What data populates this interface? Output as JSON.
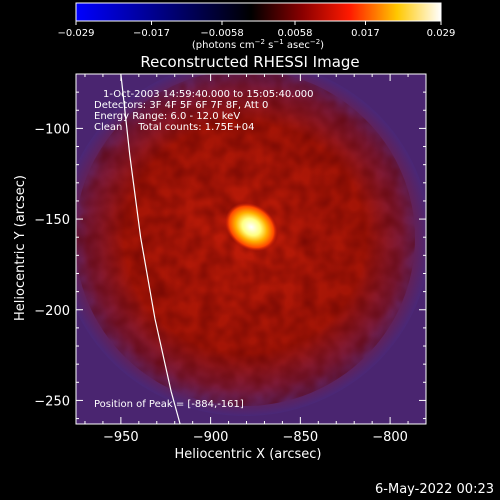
{
  "chart_data": {
    "type": "heatmap",
    "title": "Reconstructed RHESSI Image",
    "xlabel": "Heliocentric X (arcsec)",
    "ylabel": "Heliocentric Y (arcsec)",
    "xlim": [
      -975,
      -780
    ],
    "ylim": [
      -263,
      -70
    ],
    "xticks": [
      -950,
      -900,
      -850,
      -800
    ],
    "xtick_labels": [
      "−950",
      "−900",
      "−850",
      "−800"
    ],
    "yticks": [
      -100,
      -150,
      -200,
      -250
    ],
    "ytick_labels": [
      "−100",
      "−150",
      "−200",
      "−250"
    ],
    "colorbar": {
      "range": [
        -0.029,
        0.029
      ],
      "ticks": [
        -0.029,
        -0.017,
        -0.0058,
        0.0058,
        0.017,
        0.029
      ],
      "tick_labels": [
        "−0.029",
        "−0.017",
        "−0.0058",
        "0.0058",
        "0.017",
        "0.029"
      ],
      "unit_main": "(photons cm",
      "unit_exp1": "−2",
      "unit_mid": " s",
      "unit_exp2": "−1",
      "unit_end": " asec",
      "unit_exp3": "−2",
      "unit_close": ")",
      "colors": [
        "#0000ff",
        "#000000",
        "#7f0000",
        "#ff0000",
        "#ffff00",
        "#ffffff"
      ]
    },
    "annotations": {
      "time_range": "1-Oct-2003 14:59:40.000 to 15:05:40.000",
      "detectors": "Detectors: 3F 4F 5F 6F 7F 8F, Att 0",
      "energy_range": "Energy Range: 6.0 - 12.0 keV",
      "clean": "Clean     Total counts: 1.75E+04",
      "peak": "Position of Peak = [-884,-161]"
    },
    "peak": {
      "x": -884,
      "y": -161
    },
    "limb_curve": [
      [
        -950,
        -70
      ],
      [
        -945,
        -115
      ],
      [
        -939,
        -160
      ],
      [
        -931,
        -205
      ],
      [
        -922,
        -245
      ],
      [
        -917,
        -263
      ]
    ],
    "colors": {
      "background_fringe": "#5a2a8a",
      "disk_red": "#b01808",
      "core": "#ffffff",
      "limb_line": "#ffffff"
    }
  },
  "footer": {
    "timestamp": "6-May-2022 00:23"
  }
}
